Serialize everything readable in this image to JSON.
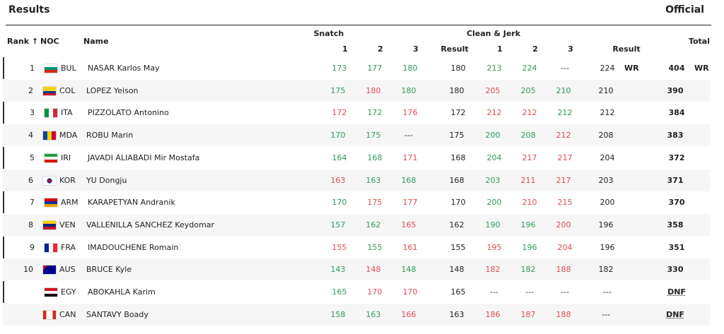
{
  "header": {
    "title": "Results",
    "status": "Official"
  },
  "columns": {
    "rank": "Rank ↑",
    "noc": "NOC",
    "name": "Name",
    "snatch": "Snatch",
    "snatch_attempts": [
      "1",
      "2",
      "3"
    ],
    "snatch_result": "Result",
    "cj": "Clean & Jerk",
    "cj_attempts": [
      "1",
      "2",
      "3"
    ],
    "cj_result": "Result",
    "total": "Total"
  },
  "colors": {
    "good": "#2f9a5a",
    "no_lift": "#e04b50",
    "none": "#333333"
  },
  "table": {
    "rows": [
      {
        "rank": "1",
        "noc": "BUL",
        "name": "NASAR Karlos May",
        "snatch": [
          "173",
          "177",
          "180"
        ],
        "snatch_colors": [
          "good",
          "good",
          "good"
        ],
        "snatch_result": "180",
        "cj": [
          "213",
          "224",
          "---"
        ],
        "cj_colors": [
          "good",
          "good",
          "none"
        ],
        "cj_result": "224",
        "cj_record": "WR",
        "total": "404",
        "total_record": "WR"
      },
      {
        "rank": "2",
        "noc": "COL",
        "name": "LOPEZ Yeison",
        "snatch": [
          "175",
          "180",
          "180"
        ],
        "snatch_colors": [
          "good",
          "no_lift",
          "good"
        ],
        "snatch_result": "180",
        "cj": [
          "205",
          "205",
          "210"
        ],
        "cj_colors": [
          "no_lift",
          "good",
          "good"
        ],
        "cj_result": "210",
        "total": "390"
      },
      {
        "rank": "3",
        "noc": "ITA",
        "name": "PIZZOLATO Antonino",
        "snatch": [
          "172",
          "172",
          "176"
        ],
        "snatch_colors": [
          "no_lift",
          "good",
          "no_lift"
        ],
        "snatch_result": "172",
        "cj": [
          "212",
          "212",
          "212"
        ],
        "cj_colors": [
          "no_lift",
          "no_lift",
          "good"
        ],
        "cj_result": "212",
        "total": "384"
      },
      {
        "rank": "4",
        "noc": "MDA",
        "name": "ROBU Marin",
        "snatch": [
          "170",
          "175",
          "---"
        ],
        "snatch_colors": [
          "good",
          "good",
          "none"
        ],
        "snatch_result": "175",
        "cj": [
          "200",
          "208",
          "212"
        ],
        "cj_colors": [
          "good",
          "good",
          "no_lift"
        ],
        "cj_result": "208",
        "total": "383"
      },
      {
        "rank": "5",
        "noc": "IRI",
        "name": "JAVADI ALIABADI Mir Mostafa",
        "snatch": [
          "164",
          "168",
          "171"
        ],
        "snatch_colors": [
          "good",
          "good",
          "no_lift"
        ],
        "snatch_result": "168",
        "cj": [
          "204",
          "217",
          "217"
        ],
        "cj_colors": [
          "good",
          "no_lift",
          "no_lift"
        ],
        "cj_result": "204",
        "total": "372"
      },
      {
        "rank": "6",
        "noc": "KOR",
        "name": "YU Dongju",
        "snatch": [
          "163",
          "163",
          "168"
        ],
        "snatch_colors": [
          "no_lift",
          "good",
          "good"
        ],
        "snatch_result": "168",
        "cj": [
          "203",
          "211",
          "217"
        ],
        "cj_colors": [
          "good",
          "no_lift",
          "no_lift"
        ],
        "cj_result": "203",
        "total": "371"
      },
      {
        "rank": "7",
        "noc": "ARM",
        "name": "KARAPETYAN Andranik",
        "snatch": [
          "170",
          "175",
          "177"
        ],
        "snatch_colors": [
          "good",
          "no_lift",
          "no_lift"
        ],
        "snatch_result": "170",
        "cj": [
          "200",
          "210",
          "215"
        ],
        "cj_colors": [
          "good",
          "no_lift",
          "no_lift"
        ],
        "cj_result": "200",
        "total": "370"
      },
      {
        "rank": "8",
        "noc": "VEN",
        "name": "VALLENILLA SANCHEZ Keydomar",
        "snatch": [
          "157",
          "162",
          "165"
        ],
        "snatch_colors": [
          "good",
          "good",
          "no_lift"
        ],
        "snatch_result": "162",
        "cj": [
          "190",
          "196",
          "200"
        ],
        "cj_colors": [
          "good",
          "good",
          "no_lift"
        ],
        "cj_result": "196",
        "total": "358"
      },
      {
        "rank": "9",
        "noc": "FRA",
        "name": "IMADOUCHENE Romain",
        "snatch": [
          "155",
          "155",
          "161"
        ],
        "snatch_colors": [
          "no_lift",
          "good",
          "no_lift"
        ],
        "snatch_result": "155",
        "cj": [
          "195",
          "196",
          "204"
        ],
        "cj_colors": [
          "no_lift",
          "good",
          "no_lift"
        ],
        "cj_result": "196",
        "total": "351"
      },
      {
        "rank": "10",
        "noc": "AUS",
        "name": "BRUCE Kyle",
        "snatch": [
          "143",
          "148",
          "148"
        ],
        "snatch_colors": [
          "good",
          "no_lift",
          "good"
        ],
        "snatch_result": "148",
        "cj": [
          "182",
          "182",
          "188"
        ],
        "cj_colors": [
          "no_lift",
          "good",
          "no_lift"
        ],
        "cj_result": "182",
        "total": "330"
      },
      {
        "rank": null,
        "noc": "EGY",
        "name": "ABOKAHLA Karim",
        "snatch": [
          "165",
          "170",
          "170"
        ],
        "snatch_colors": [
          "good",
          "no_lift",
          "no_lift"
        ],
        "snatch_result": "165",
        "cj": [
          "---",
          "---",
          "---"
        ],
        "cj_colors": [
          "none",
          "none",
          "none"
        ],
        "cj_result": "---",
        "total": "DNF"
      },
      {
        "rank": null,
        "noc": "CAN",
        "name": "SANTAVY Boady",
        "snatch": [
          "158",
          "163",
          "166"
        ],
        "snatch_colors": [
          "good",
          "good",
          "no_lift"
        ],
        "snatch_result": "163",
        "cj": [
          "186",
          "187",
          "188"
        ],
        "cj_colors": [
          "no_lift",
          "no_lift",
          "no_lift"
        ],
        "cj_result": "---",
        "total": "DNF"
      }
    ]
  }
}
